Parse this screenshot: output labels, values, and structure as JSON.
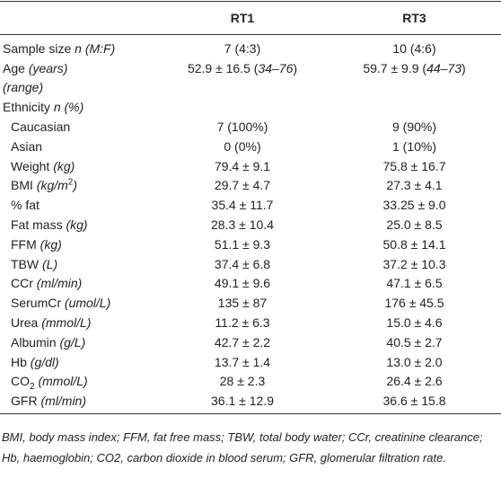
{
  "table": {
    "header": [
      "RT1",
      "RT3"
    ],
    "rows": [
      {
        "label": [
          {
            "text": "Sample size "
          },
          {
            "text": "n (M:F)",
            "format": "italic"
          }
        ],
        "cells": [
          "7 (4:3)",
          "10 (4:6)"
        ]
      },
      {
        "label": [
          {
            "text": "Age "
          },
          {
            "text": "(years)",
            "format": "italic"
          }
        ],
        "cells": [
          [
            {
              "text": "52.9 ± 16.5 ("
            },
            {
              "text": "34–76",
              "format": "italic"
            },
            {
              "text": ")"
            }
          ],
          [
            {
              "text": "59.7 ± 9.9 ("
            },
            {
              "text": "44–73",
              "format": "italic"
            },
            {
              "text": ")"
            }
          ]
        ]
      },
      {
        "label": [
          {
            "text": "(range)",
            "format": "italic"
          }
        ]
      },
      {
        "label": [
          {
            "text": "Ethnicity "
          },
          {
            "text": "n (%)",
            "format": "italic"
          }
        ]
      },
      {
        "label": [
          {
            "text": "Caucasian"
          }
        ],
        "indent": true,
        "cells": [
          "7 (100%)",
          "9 (90%)"
        ]
      },
      {
        "label": [
          {
            "text": "Asian"
          }
        ],
        "indent": true,
        "cells": [
          "0 (0%)",
          "1 (10%)"
        ]
      },
      {
        "label": [
          {
            "text": "Weight "
          },
          {
            "text": "(kg)",
            "format": "italic"
          }
        ],
        "indent": true,
        "cells": [
          "79.4 ± 9.1",
          "75.8 ± 16.7"
        ]
      },
      {
        "label": [
          {
            "text": "BMI "
          },
          {
            "text": "(kg/m",
            "format": "italic"
          },
          {
            "text": "2",
            "format": "sup"
          },
          {
            "text": ")",
            "format": "italic"
          }
        ],
        "indent": true,
        "cells": [
          "29.7 ± 4.7",
          "27.3 ± 4.1"
        ]
      },
      {
        "label": [
          {
            "text": "% fat"
          }
        ],
        "indent": true,
        "cells": [
          "35.4 ± 11.7",
          "33.25 ± 9.0"
        ]
      },
      {
        "label": [
          {
            "text": "Fat mass "
          },
          {
            "text": "(kg)",
            "format": "italic"
          }
        ],
        "indent": true,
        "cells": [
          "28.3 ± 10.4",
          "25.0 ± 8.5"
        ]
      },
      {
        "label": [
          {
            "text": "FFM "
          },
          {
            "text": "(kg)",
            "format": "italic"
          }
        ],
        "indent": true,
        "cells": [
          "51.1 ± 9.3",
          "50.8 ± 14.1"
        ]
      },
      {
        "label": [
          {
            "text": "TBW "
          },
          {
            "text": "(L)",
            "format": "italic"
          }
        ],
        "indent": true,
        "cells": [
          "37.4 ± 6.8",
          "37.2 ± 10.3"
        ]
      },
      {
        "label": [
          {
            "text": "CCr "
          },
          {
            "text": "(ml/min)",
            "format": "italic"
          }
        ],
        "indent": true,
        "cells": [
          "49.1 ± 9.6",
          "47.1 ± 6.5"
        ]
      },
      {
        "label": [
          {
            "text": "SerumCr "
          },
          {
            "text": "(umol/L)",
            "format": "italic"
          }
        ],
        "indent": true,
        "cells": [
          "135 ± 87",
          "176 ± 45.5"
        ]
      },
      {
        "label": [
          {
            "text": "Urea "
          },
          {
            "text": "(mmol/L)",
            "format": "italic"
          }
        ],
        "indent": true,
        "cells": [
          "11.2 ± 6.3",
          "15.0 ± 4.6"
        ]
      },
      {
        "label": [
          {
            "text": "Albumin "
          },
          {
            "text": "(g/L)",
            "format": "italic"
          }
        ],
        "indent": true,
        "cells": [
          "42.7 ± 2.2",
          "40.5 ± 2.7"
        ]
      },
      {
        "label": [
          {
            "text": "Hb "
          },
          {
            "text": "(g/dl)",
            "format": "italic"
          }
        ],
        "indent": true,
        "cells": [
          "13.7 ± 1.4",
          "13.0 ± 2.0"
        ]
      },
      {
        "label": [
          {
            "text": "CO"
          },
          {
            "text": "2",
            "format": "sub"
          },
          {
            "text": " "
          },
          {
            "text": "(mmol/L)",
            "format": "italic"
          }
        ],
        "indent": true,
        "cells": [
          "28 ± 2.3",
          "26.4 ± 2.6"
        ]
      },
      {
        "label": [
          {
            "text": "GFR "
          },
          {
            "text": "(ml/min)",
            "format": "italic"
          }
        ],
        "indent": true,
        "cells": [
          "36.1 ± 12.9",
          "36.6 ± 15.8"
        ]
      }
    ],
    "footnote": "BMI, body mass index; FFM, fat free mass; TBW, total body water; CCr, creatinine clearance; Hb, haemoglobin; CO2, carbon dioxide in blood serum; GFR, glomerular filtration rate."
  }
}
